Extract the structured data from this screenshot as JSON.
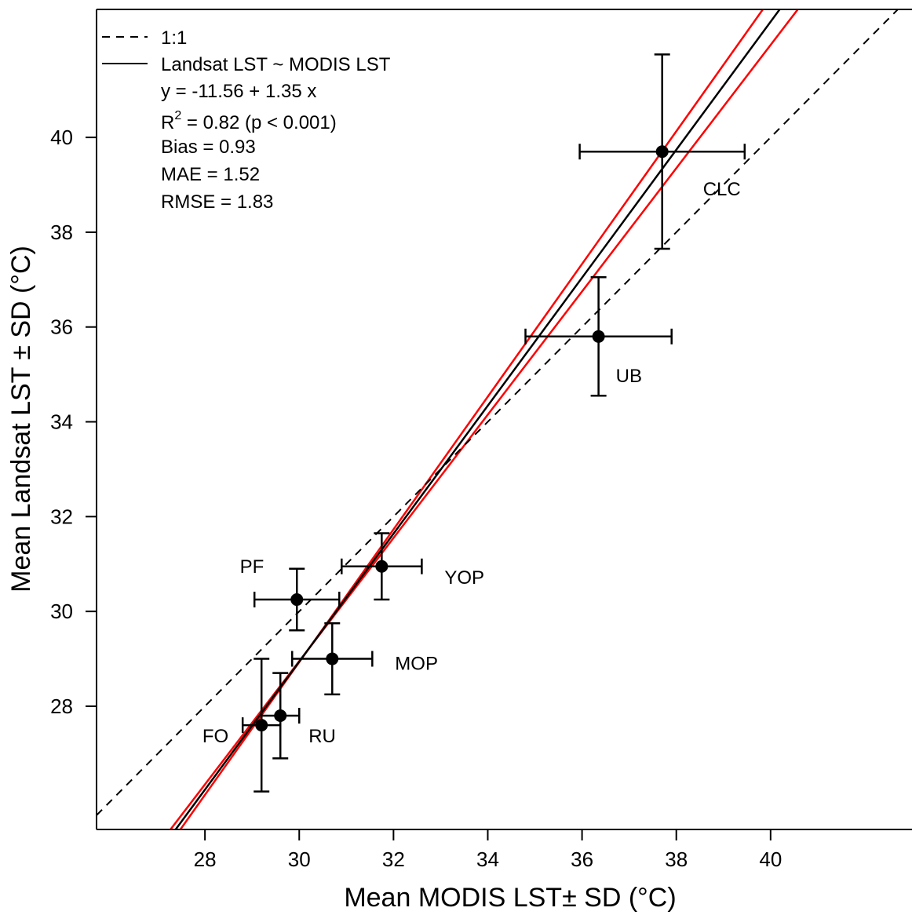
{
  "chart_data": {
    "type": "scatter",
    "xlabel": "Mean MODIS LST± SD (°C)",
    "ylabel": "Mean Landsat LST ± SD (°C)",
    "xlim": [
      25.7,
      43.0
    ],
    "ylim": [
      25.4,
      42.7
    ],
    "xticks": [
      28,
      30,
      32,
      34,
      36,
      38,
      40
    ],
    "yticks": [
      28,
      30,
      32,
      34,
      36,
      38,
      40
    ],
    "points": [
      {
        "label": "FO",
        "x": 29.2,
        "y": 27.6,
        "xsd": 0.4,
        "ysd": 1.4
      },
      {
        "label": "RU",
        "x": 29.6,
        "y": 27.8,
        "xsd": 0.4,
        "ysd": 0.9
      },
      {
        "label": "PF",
        "x": 29.95,
        "y": 30.25,
        "xsd": 0.9,
        "ysd": 0.65
      },
      {
        "label": "MOP",
        "x": 30.7,
        "y": 29.0,
        "xsd": 0.85,
        "ysd": 0.75
      },
      {
        "label": "YOP",
        "x": 31.75,
        "y": 30.95,
        "xsd": 0.85,
        "ysd": 0.7
      },
      {
        "label": "UB",
        "x": 36.35,
        "y": 35.8,
        "xsd": 1.55,
        "ysd": 1.25
      },
      {
        "label": "CLC",
        "x": 37.7,
        "y": 39.7,
        "xsd": 1.75,
        "ysd": 2.05
      }
    ],
    "reference_line": {
      "name": "1:1",
      "slope": 1,
      "intercept": 0,
      "style": "dashed"
    },
    "fit_line": {
      "name": "Landsat LST ~ MODIS LST",
      "slope": 1.35,
      "intercept": -11.56,
      "color": "#000000"
    },
    "confidence_band": {
      "color": "#ff0000",
      "lower": {
        "slope": 1.3,
        "intercept": -10.05
      },
      "upper": {
        "slope": 1.4,
        "intercept": -13.07
      }
    },
    "legend": {
      "position": "top-left",
      "items": [
        {
          "label": "1:1",
          "style": "dashed"
        },
        {
          "label": "Landsat LST ~ MODIS LST",
          "style": "solid"
        }
      ],
      "stats": {
        "equation": "y = -11.56 + 1.35 x",
        "r2_prefix": "R",
        "r2_sup": "2",
        "r2_rest": " = 0.82 (p < 0.001)",
        "bias": "Bias = 0.93",
        "mae": "MAE = 1.52",
        "rmse": "RMSE = 1.83"
      }
    }
  }
}
